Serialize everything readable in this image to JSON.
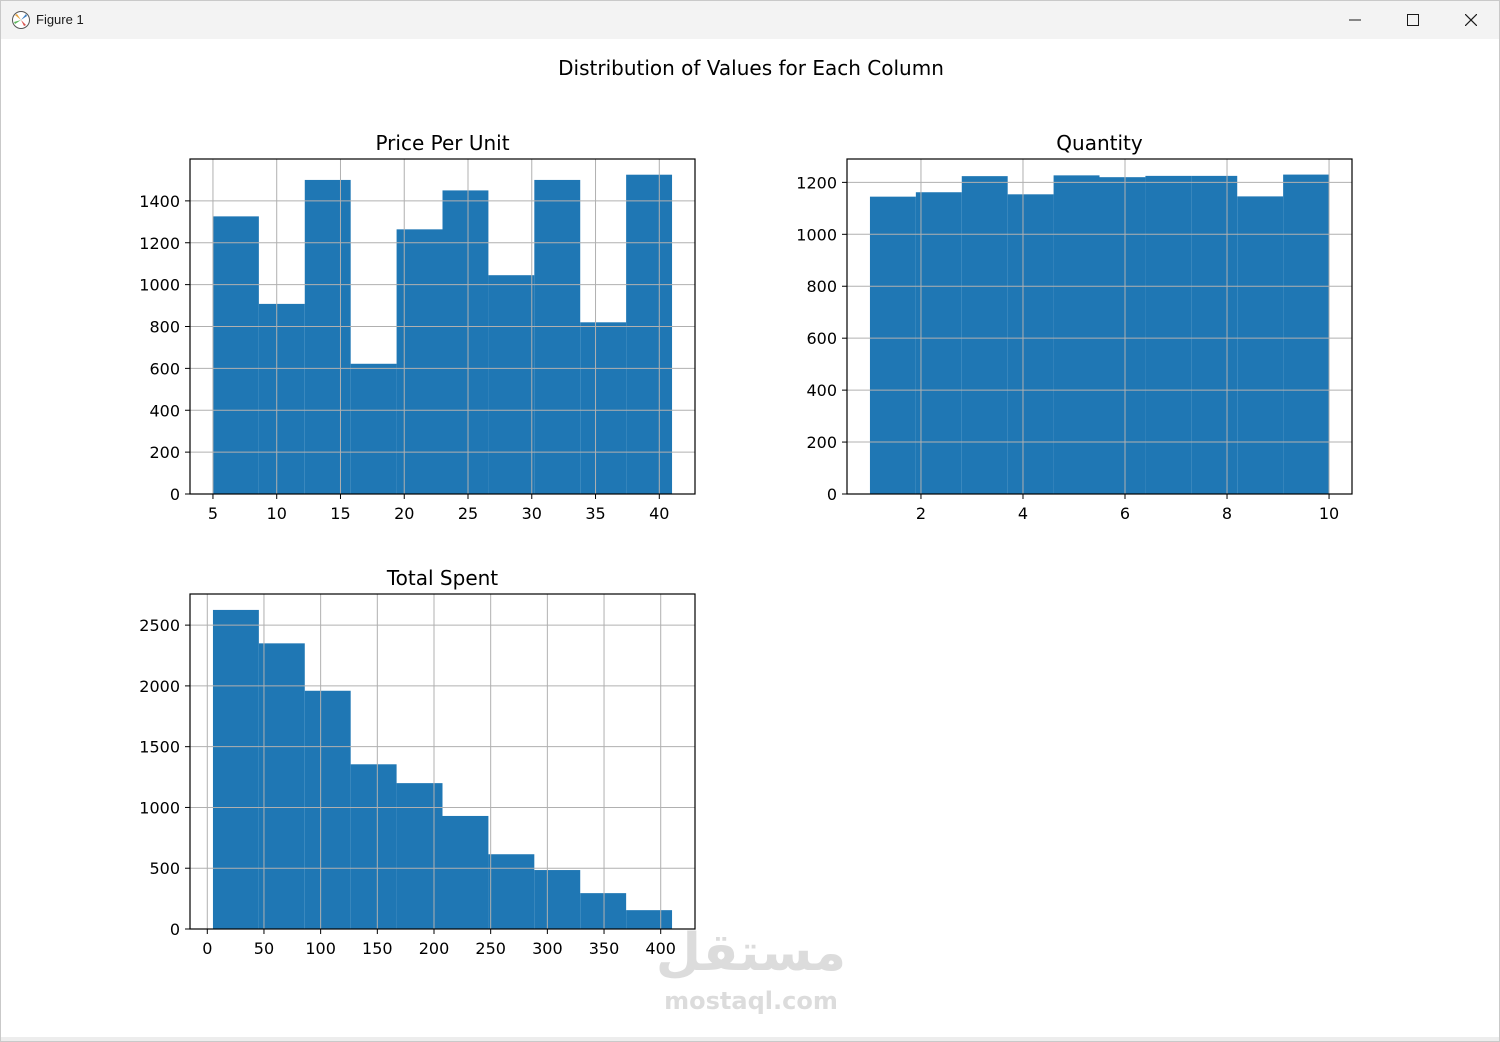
{
  "window": {
    "title": "Figure 1",
    "controls": [
      "minimize-icon",
      "maximize-icon",
      "close-icon"
    ]
  },
  "figure": {
    "suptitle": "Distribution of Values for Each Column"
  },
  "colors": {
    "bar": "#1f77b4",
    "grid": "#b0b0b0",
    "axes": "#000000"
  },
  "watermark": {
    "arabic": "مستقل",
    "latin": "mostaql.com"
  },
  "chart_data": [
    {
      "type": "bar",
      "title": "Price Per Unit",
      "xlabel": "",
      "ylabel": "",
      "grid": true,
      "bin_edges": [
        5,
        8.6,
        12.2,
        15.8,
        19.4,
        23,
        26.6,
        30.2,
        33.8,
        37.4,
        41
      ],
      "values": [
        1326,
        908,
        1500,
        622,
        1264,
        1450,
        1045,
        1500,
        820,
        1525
      ],
      "xlim": [
        3.2,
        42.8
      ],
      "ylim": [
        0,
        1600
      ],
      "xticks": [
        5,
        10,
        15,
        20,
        25,
        30,
        35,
        40
      ],
      "yticks": [
        0,
        200,
        400,
        600,
        800,
        1000,
        1200,
        1400
      ]
    },
    {
      "type": "bar",
      "title": "Quantity",
      "xlabel": "",
      "ylabel": "",
      "grid": true,
      "bin_edges": [
        1,
        1.9,
        2.8,
        3.7,
        4.6,
        5.5,
        6.4,
        7.3,
        8.2,
        9.1,
        10
      ],
      "values": [
        1145,
        1162,
        1224,
        1154,
        1227,
        1220,
        1225,
        1225,
        1146,
        1230
      ],
      "xlim": [
        0.55,
        10.45
      ],
      "ylim": [
        0,
        1290
      ],
      "xticks": [
        2,
        4,
        6,
        8,
        10
      ],
      "yticks": [
        0,
        200,
        400,
        600,
        800,
        1000,
        1200
      ]
    },
    {
      "type": "bar",
      "title": "Total Spent",
      "xlabel": "",
      "ylabel": "",
      "grid": true,
      "bin_edges": [
        5,
        45.5,
        86,
        126.5,
        167,
        207.5,
        248,
        288.5,
        329,
        369.5,
        410
      ],
      "values": [
        2625,
        2350,
        1960,
        1355,
        1200,
        930,
        615,
        485,
        295,
        155
      ],
      "xlim": [
        -15.25,
        430.25
      ],
      "ylim": [
        0,
        2756
      ],
      "xticks": [
        0,
        50,
        100,
        150,
        200,
        250,
        300,
        350,
        400
      ],
      "yticks": [
        0,
        500,
        1000,
        1500,
        2000,
        2500
      ]
    }
  ]
}
